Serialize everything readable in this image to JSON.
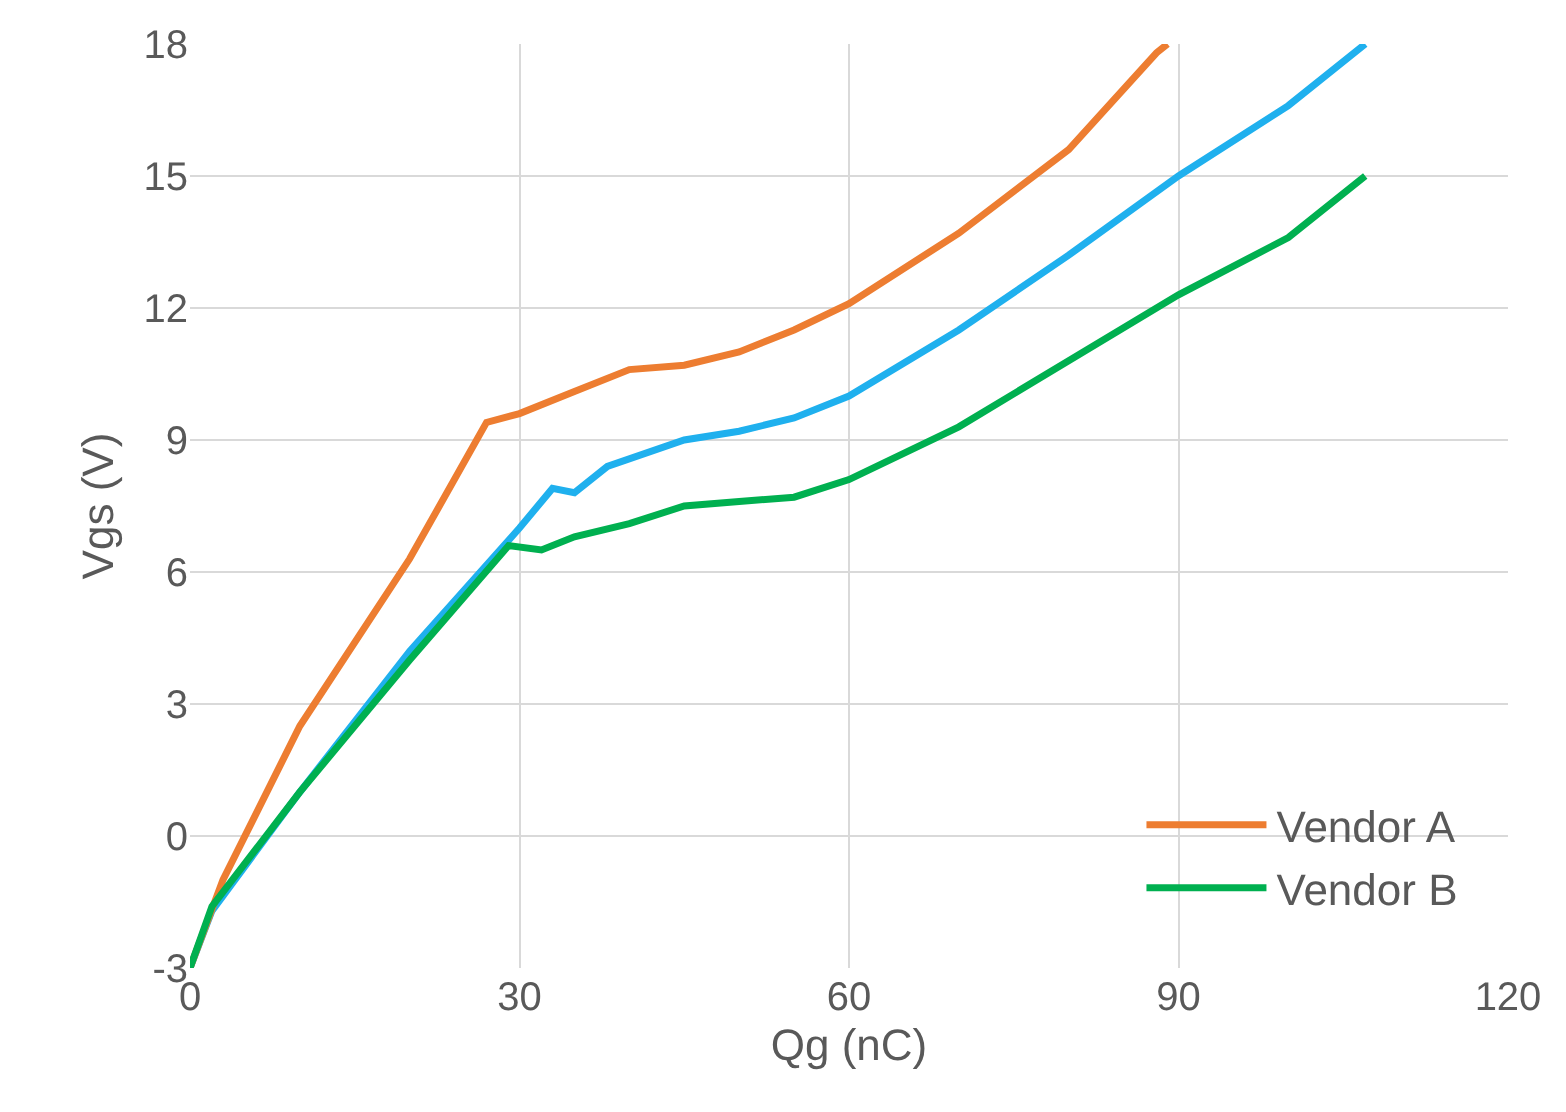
{
  "chart_data": {
    "type": "line",
    "xlabel": "Qg (nC)",
    "ylabel": "Vgs (V)",
    "xlim": [
      0,
      120
    ],
    "xticks": [
      0,
      30,
      60,
      90,
      120
    ],
    "ylim": [
      -3,
      18
    ],
    "yticks": [
      -3,
      0,
      3,
      6,
      9,
      12,
      15,
      18
    ],
    "grid": true,
    "legend": "bottom right",
    "marker": "none",
    "line_style": "solid",
    "series": [
      {
        "color": "#1fb0ee",
        "x": [
          0,
          2,
          10,
          20,
          30,
          33,
          35,
          38,
          45,
          50,
          55,
          60,
          70,
          80,
          90,
          100,
          107
        ],
        "values": [
          -3,
          -1.7,
          1.0,
          4.2,
          7.0,
          7.9,
          7.8,
          8.4,
          9.0,
          9.2,
          9.5,
          10.0,
          11.5,
          13.2,
          15.0,
          16.6,
          18
        ]
      },
      {
        "name": "Vendor A",
        "color": "#ed7d31",
        "x": [
          0,
          3,
          10,
          20,
          27,
          30,
          35,
          40,
          45,
          50,
          55,
          60,
          70,
          80,
          88,
          89
        ],
        "values": [
          -3,
          -1,
          2.5,
          6.3,
          9.4,
          9.6,
          10.1,
          10.6,
          10.7,
          11.0,
          11.5,
          12.1,
          13.7,
          15.6,
          17.8,
          18
        ]
      },
      {
        "name": "Vendor B",
        "color": "#00b050",
        "x": [
          0,
          2,
          10,
          20,
          29,
          32,
          35,
          40,
          45,
          50,
          55,
          60,
          70,
          80,
          90,
          100,
          107
        ],
        "values": [
          -3,
          -1.6,
          1.0,
          4.0,
          6.6,
          6.5,
          6.8,
          7.1,
          7.5,
          7.6,
          7.7,
          8.1,
          9.3,
          10.8,
          12.3,
          13.6,
          15.0
        ]
      }
    ]
  }
}
